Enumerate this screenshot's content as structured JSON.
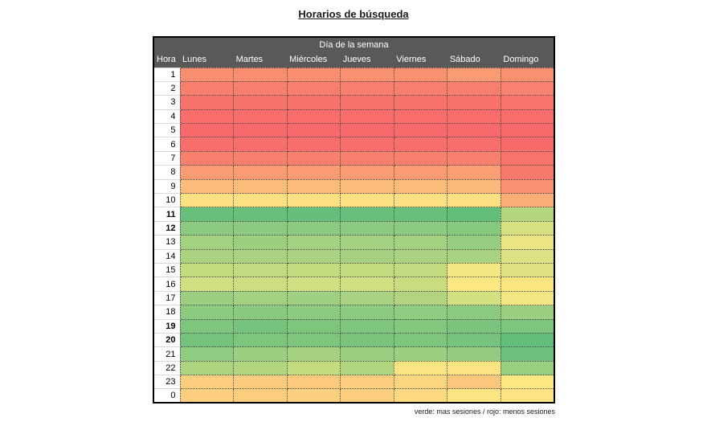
{
  "title": "Horarios de búsqueda",
  "table": {
    "header_group": "Día de la semana",
    "hour_label": "Hora"
  },
  "legend": "verde: mas sesiones / rojo: menos sesiones",
  "style_colors": {
    "header_bg": "#595959",
    "header_text": "#FFFFFF",
    "table_border": "#000000",
    "cell_border": "#4A4A4A"
  },
  "chart_data": {
    "type": "heatmap",
    "title": "Horarios de búsqueda",
    "x_title": "Día de la semana",
    "y_title": "Hora",
    "columns": [
      "Lunes",
      "Martes",
      "Miércoles",
      "Jueves",
      "Viernes",
      "Sábado",
      "Domingo"
    ],
    "rows": [
      "1",
      "2",
      "3",
      "4",
      "5",
      "6",
      "7",
      "8",
      "9",
      "10",
      "11",
      "12",
      "13",
      "14",
      "15",
      "16",
      "17",
      "18",
      "19",
      "20",
      "21",
      "22",
      "23",
      "0"
    ],
    "bold_rows": [
      "11",
      "12",
      "19",
      "20"
    ],
    "color_scale": {
      "min_color": "#F8696B",
      "mid_color": "#FFEB84",
      "max_color": "#63BE7B",
      "meaning": "verde: mas sesiones / rojo: menos sesiones"
    },
    "cell_colors": [
      [
        "#F98E70",
        "#F98E70",
        "#F98E70",
        "#F9906F",
        "#F9906F",
        "#FA9B73",
        "#F99170"
      ],
      [
        "#F87E6E",
        "#F87E6E",
        "#F87E6E",
        "#F87E6E",
        "#F87E6E",
        "#F87E6E",
        "#F8816F"
      ],
      [
        "#F8726C",
        "#F8726C",
        "#F8726C",
        "#F8726C",
        "#F8726C",
        "#F8726C",
        "#F8746D"
      ],
      [
        "#F86C6B",
        "#F86C6B",
        "#F86C6B",
        "#F86C6B",
        "#F86C6B",
        "#F86C6B",
        "#F86C6B"
      ],
      [
        "#F8696B",
        "#F8696B",
        "#F8696B",
        "#F8696B",
        "#F8696B",
        "#F8696B",
        "#F8696B"
      ],
      [
        "#F86E6C",
        "#F86E6C",
        "#F86E6C",
        "#F86E6C",
        "#F86E6C",
        "#F86E6C",
        "#F86A6B"
      ],
      [
        "#F8806F",
        "#F8806F",
        "#F8806F",
        "#F8806F",
        "#F8806F",
        "#F8806F",
        "#F8736C"
      ],
      [
        "#FA9B73",
        "#FA9B73",
        "#FA9B73",
        "#FA9B73",
        "#FA9B73",
        "#FA9E74",
        "#F87A6D"
      ],
      [
        "#FCBD7C",
        "#FCBD7C",
        "#FCBD7C",
        "#FCBD7C",
        "#FCBD7C",
        "#FCB97B",
        "#FA9170"
      ],
      [
        "#FEE083",
        "#FEE083",
        "#FEE083",
        "#FEE083",
        "#FEE083",
        "#FEE083",
        "#FBAD78"
      ],
      [
        "#68BF7C",
        "#68BF7C",
        "#65BE7B",
        "#68BF7C",
        "#68BF7C",
        "#63BE7B",
        "#B5D67F"
      ],
      [
        "#8BCA80",
        "#8BCA80",
        "#8BCA80",
        "#8BCA80",
        "#8BCA80",
        "#85C87F",
        "#D6E082"
      ],
      [
        "#A3D081",
        "#9CCE80",
        "#A3D081",
        "#A3D081",
        "#A3D081",
        "#97CD80",
        "#EBE584"
      ],
      [
        "#ABD281",
        "#ABD281",
        "#ABD281",
        "#A5D181",
        "#ABD281",
        "#A8D181",
        "#DCE283"
      ],
      [
        "#C5DB80",
        "#C2DA80",
        "#C5DB80",
        "#C5DB80",
        "#C2DA80",
        "#F5E684",
        "#DFE283"
      ],
      [
        "#CFDF81",
        "#CCDE81",
        "#CFDF81",
        "#CFDF81",
        "#C9DD80",
        "#FDE883",
        "#F9E680"
      ],
      [
        "#9CCF81",
        "#A3D081",
        "#9FCF80",
        "#A8D181",
        "#B2D480",
        "#D2E082",
        "#F3E684"
      ],
      [
        "#8CCA80",
        "#89C97F",
        "#8CCA80",
        "#8CCA80",
        "#8FCB80",
        "#8CCA80",
        "#9CCF81"
      ],
      [
        "#7EC67E",
        "#74C27C",
        "#7EC67E",
        "#7EC67E",
        "#81C77E",
        "#7AC47D",
        "#7EC67E"
      ],
      [
        "#74C27C",
        "#7EC67E",
        "#7EC67E",
        "#7AC47D",
        "#7EC67E",
        "#77C37D",
        "#63BE7B"
      ],
      [
        "#8FCB80",
        "#9CCF81",
        "#A5D181",
        "#9CCF81",
        "#9CCF81",
        "#93CC80",
        "#6DC07C"
      ],
      [
        "#AED381",
        "#B4D580",
        "#C4DB80",
        "#B1D480",
        "#FEE583",
        "#FEE383",
        "#98CE80"
      ],
      [
        "#FDCE7E",
        "#FDCB7D",
        "#FDC97D",
        "#FDCE7E",
        "#FDD480",
        "#FCC77C",
        "#FEE883"
      ],
      [
        "#FDCF7E",
        "#FDCE7E",
        "#FDD07F",
        "#FDCE7E",
        "#FDD981",
        "#FEE583",
        "#FEE283"
      ]
    ]
  }
}
